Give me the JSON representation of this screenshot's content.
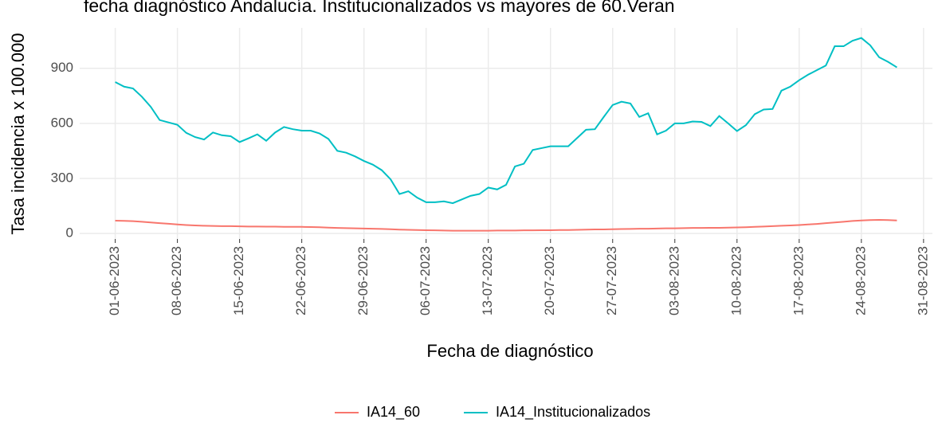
{
  "chart_data": {
    "type": "line",
    "title": "fecha diagnóstico Andalucía. Institucionalizados vs mayores de 60.Veran",
    "x_label": "Fecha de diagnóstico",
    "y_label": "Tasa incidencia x 100.000",
    "x": [
      "01-06-2023",
      "02-06-2023",
      "03-06-2023",
      "04-06-2023",
      "05-06-2023",
      "06-06-2023",
      "07-06-2023",
      "08-06-2023",
      "09-06-2023",
      "10-06-2023",
      "11-06-2023",
      "12-06-2023",
      "13-06-2023",
      "14-06-2023",
      "15-06-2023",
      "16-06-2023",
      "17-06-2023",
      "18-06-2023",
      "19-06-2023",
      "20-06-2023",
      "21-06-2023",
      "22-06-2023",
      "23-06-2023",
      "24-06-2023",
      "25-06-2023",
      "26-06-2023",
      "27-06-2023",
      "28-06-2023",
      "29-06-2023",
      "30-06-2023",
      "01-07-2023",
      "02-07-2023",
      "03-07-2023",
      "04-07-2023",
      "05-07-2023",
      "06-07-2023",
      "07-07-2023",
      "08-07-2023",
      "09-07-2023",
      "10-07-2023",
      "11-07-2023",
      "12-07-2023",
      "13-07-2023",
      "14-07-2023",
      "15-07-2023",
      "16-07-2023",
      "17-07-2023",
      "18-07-2023",
      "19-07-2023",
      "20-07-2023",
      "21-07-2023",
      "22-07-2023",
      "23-07-2023",
      "24-07-2023",
      "25-07-2023",
      "26-07-2023",
      "27-07-2023",
      "28-07-2023",
      "29-07-2023",
      "30-07-2023",
      "31-07-2023",
      "01-08-2023",
      "02-08-2023",
      "03-08-2023",
      "04-08-2023",
      "05-08-2023",
      "06-08-2023",
      "07-08-2023",
      "08-08-2023",
      "09-08-2023",
      "10-08-2023",
      "11-08-2023",
      "12-08-2023",
      "13-08-2023",
      "14-08-2023",
      "15-08-2023",
      "16-08-2023",
      "17-08-2023",
      "18-08-2023",
      "19-08-2023",
      "20-08-2023",
      "21-08-2023",
      "22-08-2023",
      "23-08-2023",
      "24-08-2023",
      "25-08-2023",
      "26-08-2023",
      "27-08-2023",
      "28-08-2023"
    ],
    "series": [
      {
        "name": "IA14_60",
        "color": "#F8766D",
        "values": [
          70,
          69,
          67,
          64,
          60,
          56,
          53,
          49,
          46,
          44,
          42,
          41,
          40,
          40,
          39,
          38,
          38,
          37,
          37,
          36,
          36,
          36,
          35,
          34,
          32,
          30,
          29,
          28,
          27,
          26,
          25,
          23,
          21,
          20,
          19,
          18,
          17,
          16,
          15,
          15,
          15,
          15,
          15,
          16,
          16,
          16,
          17,
          17,
          18,
          18,
          19,
          19,
          20,
          21,
          22,
          22,
          23,
          24,
          25,
          26,
          26,
          27,
          28,
          28,
          29,
          30,
          30,
          31,
          31,
          32,
          33,
          34,
          36,
          38,
          40,
          42,
          44,
          46,
          49,
          52,
          56,
          60,
          64,
          68,
          71,
          73,
          74,
          73,
          71
        ]
      },
      {
        "name": "IA14_Institucionalizados",
        "color": "#00BFC4",
        "values": [
          825,
          800,
          790,
          745,
          690,
          618,
          605,
          592,
          548,
          525,
          512,
          550,
          535,
          530,
          498,
          518,
          540,
          505,
          550,
          580,
          568,
          560,
          560,
          545,
          515,
          450,
          440,
          420,
          395,
          375,
          345,
          295,
          215,
          230,
          195,
          170,
          170,
          175,
          165,
          185,
          205,
          215,
          250,
          240,
          265,
          365,
          380,
          455,
          465,
          475,
          475,
          475,
          520,
          565,
          568,
          635,
          700,
          718,
          708,
          635,
          655,
          540,
          560,
          600,
          600,
          610,
          608,
          585,
          640,
          600,
          558,
          590,
          650,
          675,
          678,
          778,
          800,
          835,
          865,
          890,
          915,
          1020,
          1020,
          1050,
          1065,
          1025,
          960,
          935,
          905
        ]
      }
    ],
    "xlim": [
      "28-05-2023",
      "01-09-2023"
    ],
    "xticks": [
      "01-06-2023",
      "08-06-2023",
      "15-06-2023",
      "22-06-2023",
      "29-06-2023",
      "06-07-2023",
      "13-07-2023",
      "20-07-2023",
      "27-07-2023",
      "03-08-2023",
      "10-08-2023",
      "17-08-2023",
      "24-08-2023",
      "31-08-2023"
    ],
    "ylim": [
      -30,
      1120
    ],
    "yticks": [
      0,
      300,
      600,
      900
    ],
    "grid": true,
    "legend": "bottom"
  }
}
